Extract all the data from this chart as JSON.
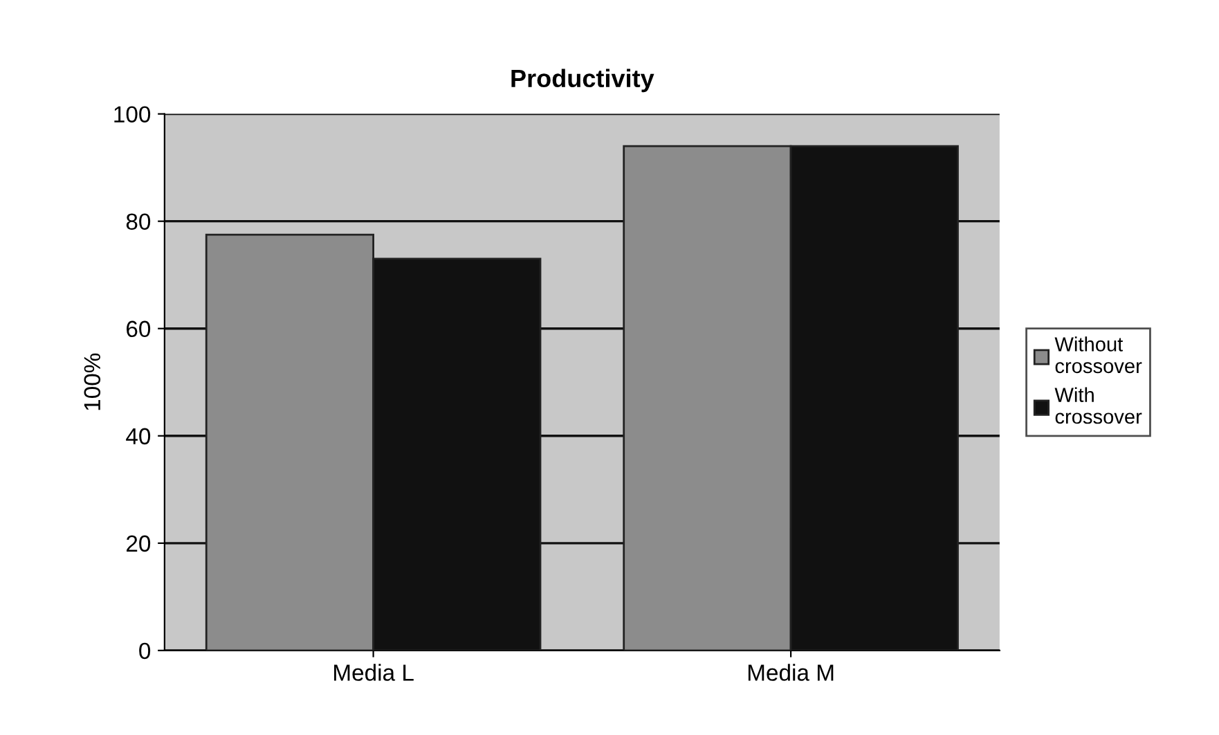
{
  "chart_data": {
    "type": "bar",
    "title": "Productivity",
    "ylabel": "100%",
    "categories": [
      "Media L",
      "Media M"
    ],
    "series": [
      {
        "name": "Without crossover",
        "color": "#8c8c8c",
        "values": [
          77.5,
          94
        ]
      },
      {
        "name": "With crossover",
        "color": "#111111",
        "values": [
          73,
          94
        ]
      }
    ],
    "ylim": [
      0,
      100
    ],
    "yticks": [
      0,
      20,
      40,
      60,
      80,
      100
    ],
    "grid": "y",
    "legend": "right"
  }
}
